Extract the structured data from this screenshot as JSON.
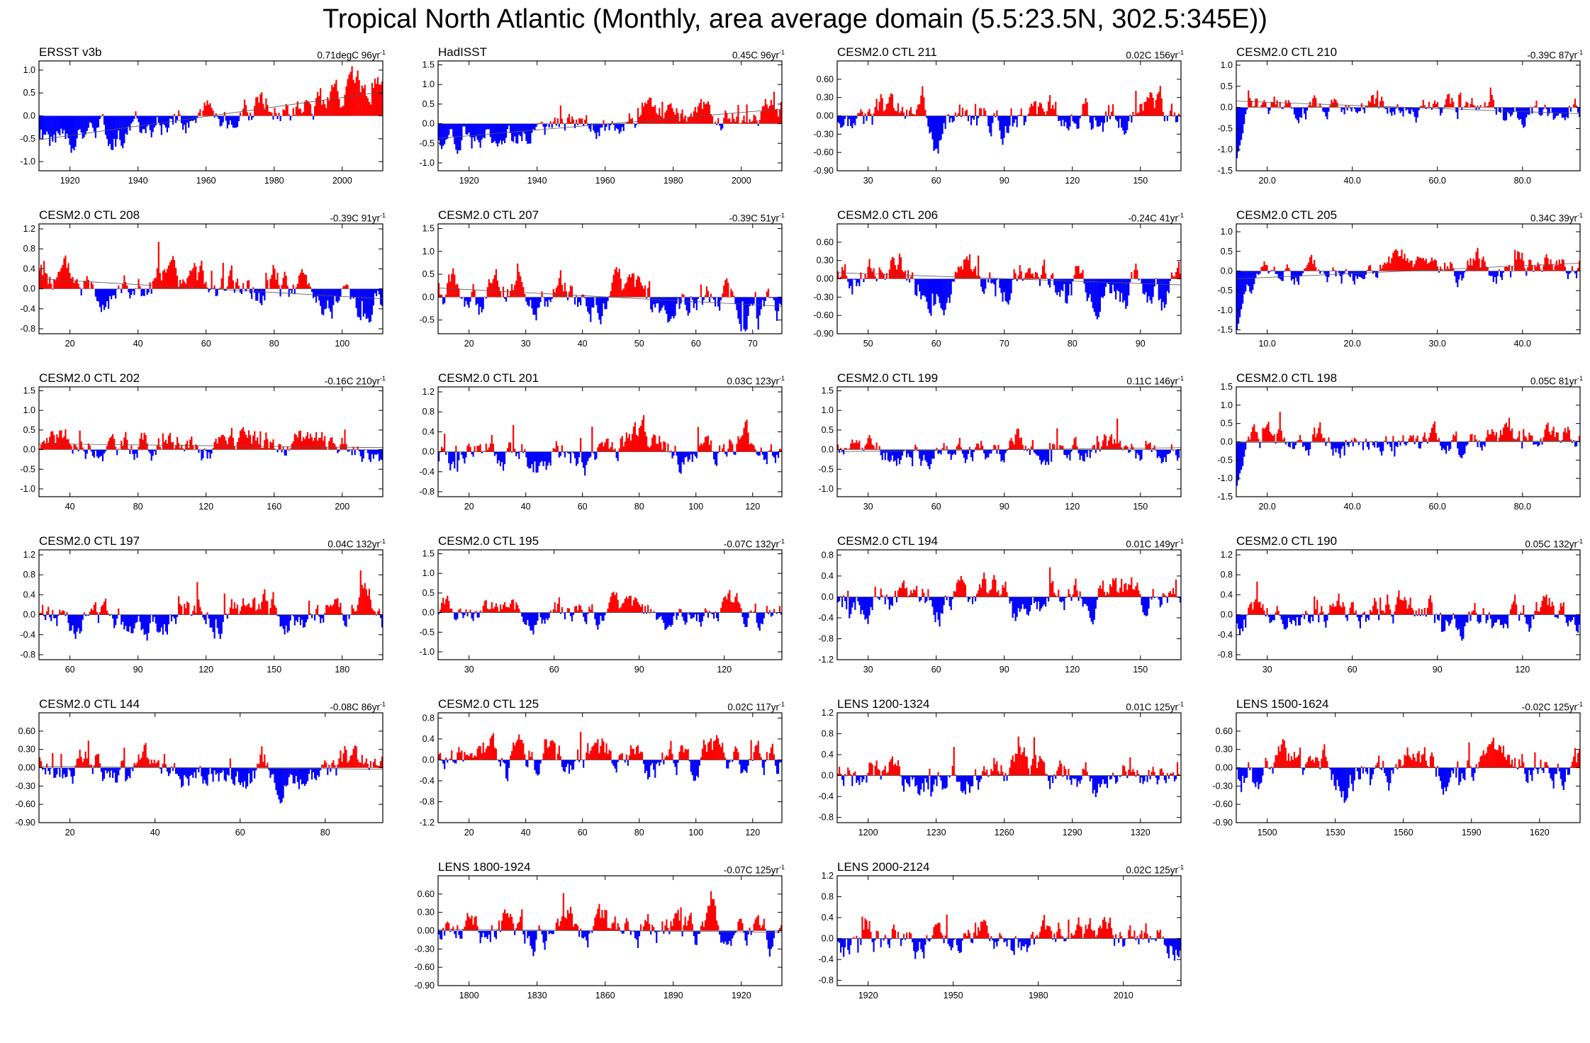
{
  "title": "Tropical North Atlantic (Monthly, area average domain (5.5:23.5N, 302.5:345E))",
  "colors": {
    "positive": "#ff0000",
    "negative": "#0000ff",
    "frame": "#000000",
    "zero_line": "#808080"
  },
  "chart_data": [
    {
      "type": "bar",
      "title": "ERSST v3b",
      "trend": {
        "value": "0.71degC",
        "period": "96yr",
        "exponent": "-1"
      },
      "yticks": [
        "1.0",
        "0.5",
        "0.0",
        "-0.5",
        "-1.0"
      ],
      "ylim": [
        -1.2,
        1.2
      ],
      "xticks": [
        "1920",
        "1940",
        "1960",
        "1980",
        "2000"
      ],
      "series_shape": {
        "slope": 1.05,
        "intercept": 0.0,
        "amp": 0.32,
        "seed": 1
      }
    },
    {
      "type": "bar",
      "title": "HadISST",
      "trend": {
        "value": "0.45C",
        "period": "96yr",
        "exponent": "-1"
      },
      "yticks": [
        "1.5",
        "1.0",
        "0.5",
        "0.0",
        "-0.5",
        "-1.0"
      ],
      "ylim": [
        -1.2,
        1.6
      ],
      "xticks": [
        "1920",
        "1940",
        "1960",
        "1980",
        "2000"
      ],
      "series_shape": {
        "slope": 0.75,
        "intercept": 0.0,
        "amp": 0.3,
        "seed": 2
      }
    },
    {
      "type": "bar",
      "title": "CESM2.0 CTL 211",
      "trend": {
        "value": "0.02C",
        "period": "156yr",
        "exponent": "-1"
      },
      "yticks": [
        "0.60",
        "0.30",
        "0.00",
        "-0.30",
        "-0.60",
        "-0.90"
      ],
      "ylim": [
        -0.9,
        0.9
      ],
      "xticks": [
        "30",
        "60",
        "90",
        "120",
        "150"
      ],
      "series_shape": {
        "slope": 0.0,
        "intercept": 0.0,
        "amp": 0.26,
        "seed": 3
      }
    },
    {
      "type": "bar",
      "title": "CESM2.0 CTL 210",
      "trend": {
        "value": "-0.39C",
        "period": "87yr",
        "exponent": "-1"
      },
      "yticks": [
        "1.0",
        "0.5",
        "0.0",
        "-0.5",
        "-1.0",
        "-1.5"
      ],
      "ylim": [
        -1.5,
        1.1
      ],
      "xticks": [
        "20.0",
        "40.0",
        "60.0",
        "80.0"
      ],
      "series_shape": {
        "slope": -0.3,
        "intercept": 0.0,
        "amp": 0.26,
        "seed": 4,
        "drop": -1.2
      }
    },
    {
      "type": "bar",
      "title": "CESM2.0 CTL 208",
      "trend": {
        "value": "-0.39C",
        "period": "91yr",
        "exponent": "-1"
      },
      "yticks": [
        "1.2",
        "0.8",
        "0.4",
        "0.0",
        "-0.4",
        "-0.8"
      ],
      "ylim": [
        -0.9,
        1.3
      ],
      "xticks": [
        "20",
        "40",
        "60",
        "80",
        "100"
      ],
      "series_shape": {
        "slope": -0.4,
        "intercept": 0.0,
        "amp": 0.32,
        "seed": 5
      }
    },
    {
      "type": "bar",
      "title": "CESM2.0 CTL 207",
      "trend": {
        "value": "-0.39C",
        "period": "51yr",
        "exponent": "-1"
      },
      "yticks": [
        "1.5",
        "1.0",
        "0.5",
        "0.0",
        "-0.5"
      ],
      "ylim": [
        -0.8,
        1.6
      ],
      "xticks": [
        "20",
        "30",
        "40",
        "50",
        "60",
        "70"
      ],
      "series_shape": {
        "slope": -0.4,
        "intercept": 0.0,
        "amp": 0.35,
        "seed": 6
      }
    },
    {
      "type": "bar",
      "title": "CESM2.0 CTL 206",
      "trend": {
        "value": "-0.24C",
        "period": "41yr",
        "exponent": "-1"
      },
      "yticks": [
        "0.60",
        "0.30",
        "0.00",
        "-0.30",
        "-0.60",
        "-0.90"
      ],
      "ylim": [
        -0.9,
        0.9
      ],
      "xticks": [
        "50",
        "60",
        "70",
        "80",
        "90"
      ],
      "series_shape": {
        "slope": -0.2,
        "intercept": 0.0,
        "amp": 0.28,
        "seed": 7
      }
    },
    {
      "type": "bar",
      "title": "CESM2.0 CTL 205",
      "trend": {
        "value": "0.34C",
        "period": "39yr",
        "exponent": "-1"
      },
      "yticks": [
        "1.0",
        "0.5",
        "0.0",
        "-0.5",
        "-1.0",
        "-1.5"
      ],
      "ylim": [
        -1.6,
        1.2
      ],
      "xticks": [
        "10.0",
        "20.0",
        "30.0",
        "40.0"
      ],
      "series_shape": {
        "slope": 0.4,
        "intercept": 0.0,
        "amp": 0.3,
        "seed": 8,
        "drop": -1.5
      }
    },
    {
      "type": "bar",
      "title": "CESM2.0 CTL 202",
      "trend": {
        "value": "-0.16C",
        "period": "210yr",
        "exponent": "-1"
      },
      "yticks": [
        "1.5",
        "1.0",
        "0.5",
        "0.0",
        "-0.5",
        "-1.0"
      ],
      "ylim": [
        -1.2,
        1.6
      ],
      "xticks": [
        "40",
        "80",
        "120",
        "160",
        "200"
      ],
      "series_shape": {
        "slope": -0.1,
        "intercept": 0.1,
        "amp": 0.32,
        "seed": 9
      }
    },
    {
      "type": "bar",
      "title": "CESM2.0 CTL 201",
      "trend": {
        "value": "0.03C",
        "period": "123yr",
        "exponent": "-1"
      },
      "yticks": [
        "1.2",
        "0.8",
        "0.4",
        "0.0",
        "-0.4",
        "-0.8"
      ],
      "ylim": [
        -0.9,
        1.3
      ],
      "xticks": [
        "20",
        "40",
        "60",
        "80",
        "100",
        "120"
      ],
      "series_shape": {
        "slope": 0.0,
        "intercept": 0.0,
        "amp": 0.32,
        "seed": 10
      }
    },
    {
      "type": "bar",
      "title": "CESM2.0 CTL 199",
      "trend": {
        "value": "0.11C",
        "period": "146yr",
        "exponent": "-1"
      },
      "yticks": [
        "1.5",
        "1.0",
        "0.5",
        "0.0",
        "-0.5",
        "-1.0"
      ],
      "ylim": [
        -1.2,
        1.6
      ],
      "xticks": [
        "30",
        "60",
        "90",
        "120",
        "150"
      ],
      "series_shape": {
        "slope": 0.1,
        "intercept": 0.0,
        "amp": 0.32,
        "seed": 11
      }
    },
    {
      "type": "bar",
      "title": "CESM2.0 CTL 198",
      "trend": {
        "value": "0.05C",
        "period": "81yr",
        "exponent": "-1"
      },
      "yticks": [
        "1.5",
        "1.0",
        "0.5",
        "0.0",
        "-0.5",
        "-1.0",
        "-1.5"
      ],
      "ylim": [
        -1.5,
        1.5
      ],
      "xticks": [
        "20.0",
        "40.0",
        "60.0",
        "80.0"
      ],
      "series_shape": {
        "slope": 0.05,
        "intercept": 0.0,
        "amp": 0.34,
        "seed": 12,
        "drop": -1.2
      }
    },
    {
      "type": "bar",
      "title": "CESM2.0 CTL 197",
      "trend": {
        "value": "0.04C",
        "period": "132yr",
        "exponent": "-1"
      },
      "yticks": [
        "1.2",
        "0.8",
        "0.4",
        "0.0",
        "-0.4",
        "-0.8"
      ],
      "ylim": [
        -0.9,
        1.3
      ],
      "xticks": [
        "60",
        "90",
        "120",
        "150",
        "180"
      ],
      "series_shape": {
        "slope": 0.0,
        "intercept": 0.0,
        "amp": 0.3,
        "seed": 13
      }
    },
    {
      "type": "bar",
      "title": "CESM2.0 CTL 195",
      "trend": {
        "value": "-0.07C",
        "period": "132yr",
        "exponent": "-1"
      },
      "yticks": [
        "1.5",
        "1.0",
        "0.5",
        "0.0",
        "-0.5",
        "-1.0"
      ],
      "ylim": [
        -1.2,
        1.6
      ],
      "xticks": [
        "30",
        "60",
        "90",
        "120"
      ],
      "series_shape": {
        "slope": 0.0,
        "intercept": 0.0,
        "amp": 0.3,
        "seed": 14
      }
    },
    {
      "type": "bar",
      "title": "CESM2.0 CTL 194",
      "trend": {
        "value": "0.01C",
        "period": "149yr",
        "exponent": "-1"
      },
      "yticks": [
        "0.8",
        "0.4",
        "0.0",
        "-0.4",
        "-0.8",
        "-1.2"
      ],
      "ylim": [
        -1.2,
        0.9
      ],
      "xticks": [
        "30",
        "60",
        "90",
        "120",
        "150"
      ],
      "series_shape": {
        "slope": 0.0,
        "intercept": 0.0,
        "amp": 0.3,
        "seed": 15
      }
    },
    {
      "type": "bar",
      "title": "CESM2.0 CTL 190",
      "trend": {
        "value": "0.05C",
        "period": "132yr",
        "exponent": "-1"
      },
      "yticks": [
        "1.2",
        "0.8",
        "0.4",
        "0.0",
        "-0.4",
        "-0.8"
      ],
      "ylim": [
        -0.9,
        1.3
      ],
      "xticks": [
        "30",
        "60",
        "90",
        "120"
      ],
      "series_shape": {
        "slope": 0.0,
        "intercept": 0.0,
        "amp": 0.3,
        "seed": 16
      }
    },
    {
      "type": "bar",
      "title": "CESM2.0 CTL 144",
      "trend": {
        "value": "-0.08C",
        "period": "86yr",
        "exponent": "-1"
      },
      "yticks": [
        "0.60",
        "0.30",
        "0.00",
        "-0.30",
        "-0.60",
        "-0.90"
      ],
      "ylim": [
        -0.9,
        0.9
      ],
      "xticks": [
        "20",
        "40",
        "60",
        "80"
      ],
      "series_shape": {
        "slope": -0.05,
        "intercept": 0.0,
        "amp": 0.25,
        "seed": 17
      }
    },
    {
      "type": "bar",
      "title": "CESM2.0 CTL 125",
      "trend": {
        "value": "0.02C",
        "period": "117yr",
        "exponent": "-1"
      },
      "yticks": [
        "0.8",
        "0.4",
        "0.0",
        "-0.4",
        "-0.8",
        "-1.2"
      ],
      "ylim": [
        -1.2,
        0.9
      ],
      "xticks": [
        "20",
        "40",
        "60",
        "80",
        "100",
        "120"
      ],
      "series_shape": {
        "slope": 0.0,
        "intercept": 0.0,
        "amp": 0.3,
        "seed": 18
      }
    },
    {
      "type": "bar",
      "title": "LENS 1200-1324",
      "trend": {
        "value": "0.01C",
        "period": "125yr",
        "exponent": "-1"
      },
      "yticks": [
        "1.2",
        "0.8",
        "0.4",
        "0.0",
        "-0.4",
        "-0.8"
      ],
      "ylim": [
        -0.9,
        1.2
      ],
      "xticks": [
        "1200",
        "1230",
        "1260",
        "1290",
        "1320"
      ],
      "series_shape": {
        "slope": 0.0,
        "intercept": 0.0,
        "amp": 0.3,
        "seed": 19
      }
    },
    {
      "type": "bar",
      "title": "LENS 1500-1624",
      "trend": {
        "value": "-0.02C",
        "period": "125yr",
        "exponent": "-1"
      },
      "yticks": [
        "0.60",
        "0.30",
        "0.00",
        "-0.30",
        "-0.60",
        "-0.90"
      ],
      "ylim": [
        -0.9,
        0.9
      ],
      "xticks": [
        "1500",
        "1530",
        "1560",
        "1590",
        "1620"
      ],
      "series_shape": {
        "slope": 0.0,
        "intercept": 0.0,
        "amp": 0.26,
        "seed": 20
      }
    },
    {
      "type": "bar",
      "title": "LENS 1800-1924",
      "trend": {
        "value": "-0.07C",
        "period": "125yr",
        "exponent": "-1"
      },
      "yticks": [
        "0.60",
        "0.30",
        "0.00",
        "-0.30",
        "-0.60",
        "-0.90"
      ],
      "ylim": [
        -0.9,
        0.9
      ],
      "xticks": [
        "1800",
        "1830",
        "1860",
        "1890",
        "1920"
      ],
      "series_shape": {
        "slope": -0.05,
        "intercept": 0.0,
        "amp": 0.26,
        "seed": 21
      }
    },
    {
      "type": "bar",
      "title": "LENS 2000-2124",
      "trend": {
        "value": "0.02C",
        "period": "125yr",
        "exponent": "-1"
      },
      "yticks": [
        "1.2",
        "0.8",
        "0.4",
        "0.0",
        "-0.4",
        "-0.8"
      ],
      "ylim": [
        -0.9,
        1.2
      ],
      "xticks": [
        "1920",
        "1950",
        "1980",
        "2010"
      ],
      "series_shape": {
        "slope": 0.0,
        "intercept": 0.0,
        "amp": 0.3,
        "seed": 22
      }
    }
  ]
}
